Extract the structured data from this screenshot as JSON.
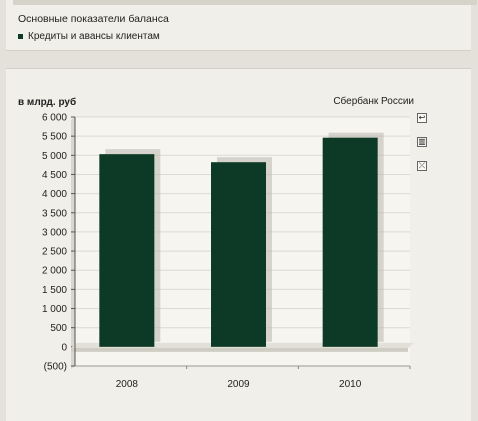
{
  "top_panel": {
    "title": "Основные показатели баланса",
    "legend": [
      {
        "label": "Кредиты и авансы клиентам",
        "color": "#0d3a26"
      }
    ]
  },
  "chart_panel": {
    "y_unit_label": "в млрд. руб",
    "bank_label": "Сбербанк России",
    "tools": [
      {
        "name": "undo-icon",
        "glyph": "↩"
      },
      {
        "name": "bar-chart-icon",
        "glyph": "▥"
      },
      {
        "name": "hide-data-icon",
        "glyph": "⤫"
      }
    ]
  },
  "chart_data": {
    "type": "bar",
    "categories": [
      "2008",
      "2009",
      "2010"
    ],
    "series": [
      {
        "name": "Кредиты и авансы клиентам",
        "values": [
          5030,
          4820,
          5460
        ],
        "color": "#0d3a26"
      }
    ],
    "ylim": [
      -500,
      6000
    ],
    "yticks": [
      -500,
      0,
      500,
      1000,
      1500,
      2000,
      2500,
      3000,
      3500,
      4000,
      4500,
      5000,
      5500,
      6000
    ],
    "ytick_labels": [
      "(500)",
      "0",
      "500",
      "1 000",
      "1 500",
      "2 000",
      "2 500",
      "3 000",
      "3 500",
      "4 000",
      "4 500",
      "5 000",
      "5 500",
      "6 000"
    ],
    "grid": true,
    "ylabel": "в млрд. руб"
  }
}
